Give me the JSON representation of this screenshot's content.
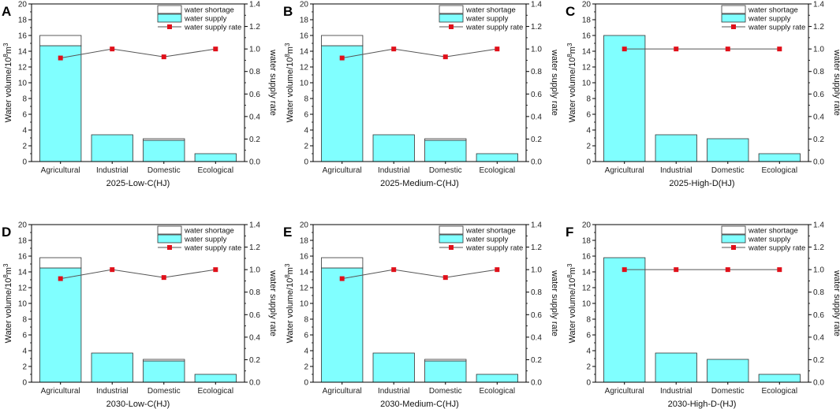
{
  "figure": {
    "left_axis_label": "Water volume/10",
    "left_axis_sup1": "8",
    "left_axis_mid": "m",
    "left_axis_sup2": "3",
    "right_axis_label": "water supply rate",
    "legend": {
      "shortage": "water shortage",
      "supply": "water supply",
      "rate": "water supply rate"
    },
    "colors": {
      "supply": "#80FFFF",
      "shortage": "#FFFFFF",
      "rate_marker": "#E0101A",
      "rate_line": "#555555",
      "frame": "#000000"
    }
  },
  "chart_data": [
    {
      "letter": "A",
      "type": "bar",
      "title": "2025-Low-C(HJ)",
      "categories": [
        "Agricultural",
        "Industrial",
        "Domestic",
        "Ecological"
      ],
      "series": [
        {
          "name": "water supply",
          "axis": "left",
          "values": [
            14.7,
            3.4,
            2.7,
            1.0
          ]
        },
        {
          "name": "water shortage",
          "axis": "left",
          "stacked_on": "water supply",
          "values": [
            1.3,
            0.0,
            0.2,
            0.0
          ]
        },
        {
          "name": "water supply rate",
          "axis": "right",
          "kind": "line",
          "values": [
            0.92,
            1.0,
            0.93,
            1.0
          ]
        }
      ],
      "ylim": [
        0,
        20
      ],
      "yticks": [
        0,
        2,
        4,
        6,
        8,
        10,
        12,
        14,
        16,
        18,
        20
      ],
      "y2lim": [
        0,
        1.4
      ],
      "y2ticks": [
        "0.0",
        "0.2",
        "0.4",
        "0.6",
        "0.8",
        "1.0",
        "1.2",
        "1.4"
      ],
      "ylabel": "Water volume/10^8m^3",
      "y2label": "water supply rate",
      "xlabel": "2025-Low-C(HJ)",
      "legend_position": "top-right"
    },
    {
      "letter": "B",
      "type": "bar",
      "title": "2025-Medium-C(HJ)",
      "categories": [
        "Agricultural",
        "Industrial",
        "Domestic",
        "Ecological"
      ],
      "series": [
        {
          "name": "water supply",
          "axis": "left",
          "values": [
            14.7,
            3.4,
            2.7,
            1.0
          ]
        },
        {
          "name": "water shortage",
          "axis": "left",
          "stacked_on": "water supply",
          "values": [
            1.3,
            0.0,
            0.2,
            0.0
          ]
        },
        {
          "name": "water supply rate",
          "axis": "right",
          "kind": "line",
          "values": [
            0.92,
            1.0,
            0.93,
            1.0
          ]
        }
      ],
      "ylim": [
        0,
        20
      ],
      "yticks": [
        0,
        2,
        4,
        6,
        8,
        10,
        12,
        14,
        16,
        18,
        20
      ],
      "y2lim": [
        0,
        1.4
      ],
      "y2ticks": [
        "0.0",
        "0.2",
        "0.4",
        "0.6",
        "0.8",
        "1.0",
        "1.2",
        "1.4"
      ],
      "ylabel": "Water volume/10^8m^3",
      "y2label": "water supply rate",
      "xlabel": "2025-Medium-C(HJ)",
      "legend_position": "top-right"
    },
    {
      "letter": "C",
      "type": "bar",
      "title": "2025-High-D(HJ)",
      "categories": [
        "Agricultural",
        "Industrial",
        "Domestic",
        "Ecological"
      ],
      "series": [
        {
          "name": "water supply",
          "axis": "left",
          "values": [
            16.0,
            3.4,
            2.9,
            1.0
          ]
        },
        {
          "name": "water shortage",
          "axis": "left",
          "stacked_on": "water supply",
          "values": [
            0.0,
            0.0,
            0.0,
            0.0
          ]
        },
        {
          "name": "water supply rate",
          "axis": "right",
          "kind": "line",
          "values": [
            1.0,
            1.0,
            1.0,
            1.0
          ]
        }
      ],
      "ylim": [
        0,
        20
      ],
      "yticks": [
        0,
        2,
        4,
        6,
        8,
        10,
        12,
        14,
        16,
        18,
        20
      ],
      "y2lim": [
        0,
        1.4
      ],
      "y2ticks": [
        "0.0",
        "0.2",
        "0.4",
        "0.6",
        "0.8",
        "1.0",
        "1.2",
        "1.4"
      ],
      "ylabel": "Water volume/10^8m^3",
      "y2label": "water supply rate",
      "xlabel": "2025-High-D(HJ)",
      "legend_position": "top-right"
    },
    {
      "letter": "D",
      "type": "bar",
      "title": "2030-Low-C(HJ)",
      "categories": [
        "Agricultural",
        "Industrial",
        "Domestic",
        "Ecological"
      ],
      "series": [
        {
          "name": "water supply",
          "axis": "left",
          "values": [
            14.5,
            3.7,
            2.7,
            1.0
          ]
        },
        {
          "name": "water shortage",
          "axis": "left",
          "stacked_on": "water supply",
          "values": [
            1.3,
            0.0,
            0.2,
            0.0
          ]
        },
        {
          "name": "water supply rate",
          "axis": "right",
          "kind": "line",
          "values": [
            0.92,
            1.0,
            0.93,
            1.0
          ]
        }
      ],
      "ylim": [
        0,
        20
      ],
      "yticks": [
        0,
        2,
        4,
        6,
        8,
        10,
        12,
        14,
        16,
        18,
        20
      ],
      "y2lim": [
        0,
        1.4
      ],
      "y2ticks": [
        "0.0",
        "0.2",
        "0.4",
        "0.6",
        "0.8",
        "1.0",
        "1.2",
        "1.4"
      ],
      "ylabel": "Water volume/10^8m^3",
      "y2label": "water supply rate",
      "xlabel": "2030-Low-C(HJ)",
      "legend_position": "top-right"
    },
    {
      "letter": "E",
      "type": "bar",
      "title": "2030-Medium-C(HJ)",
      "categories": [
        "Agricultural",
        "Industrial",
        "Domestic",
        "Ecological"
      ],
      "series": [
        {
          "name": "water supply",
          "axis": "left",
          "values": [
            14.5,
            3.7,
            2.7,
            1.0
          ]
        },
        {
          "name": "water shortage",
          "axis": "left",
          "stacked_on": "water supply",
          "values": [
            1.3,
            0.0,
            0.2,
            0.0
          ]
        },
        {
          "name": "water supply rate",
          "axis": "right",
          "kind": "line",
          "values": [
            0.92,
            1.0,
            0.93,
            1.0
          ]
        }
      ],
      "ylim": [
        0,
        20
      ],
      "yticks": [
        0,
        2,
        4,
        6,
        8,
        10,
        12,
        14,
        16,
        18,
        20
      ],
      "y2lim": [
        0,
        1.4
      ],
      "y2ticks": [
        "0.0",
        "0.2",
        "0.4",
        "0.6",
        "0.8",
        "1.0",
        "1.2",
        "1.4"
      ],
      "ylabel": "Water volume/10^8m^3",
      "y2label": "water supply rate",
      "xlabel": "2030-Medium-C(HJ)",
      "legend_position": "top-right"
    },
    {
      "letter": "F",
      "type": "bar",
      "title": "2030-High-D-(HJ)",
      "categories": [
        "Agricultural",
        "Industrial",
        "Domestic",
        "Ecological"
      ],
      "series": [
        {
          "name": "water supply",
          "axis": "left",
          "values": [
            15.8,
            3.7,
            2.9,
            1.0
          ]
        },
        {
          "name": "water shortage",
          "axis": "left",
          "stacked_on": "water supply",
          "values": [
            0.0,
            0.0,
            0.0,
            0.0
          ]
        },
        {
          "name": "water supply rate",
          "axis": "right",
          "kind": "line",
          "values": [
            1.0,
            1.0,
            1.0,
            1.0
          ]
        }
      ],
      "ylim": [
        0,
        20
      ],
      "yticks": [
        0,
        2,
        4,
        6,
        8,
        10,
        12,
        14,
        16,
        18,
        20
      ],
      "y2lim": [
        0,
        1.4
      ],
      "y2ticks": [
        "0.0",
        "0.2",
        "0.4",
        "0.6",
        "0.8",
        "1.0",
        "1.2",
        "1.4"
      ],
      "ylabel": "Water volume/10^8m^3",
      "y2label": "water supply rate",
      "xlabel": "2030-High-D-(HJ)",
      "legend_position": "top-right"
    }
  ]
}
